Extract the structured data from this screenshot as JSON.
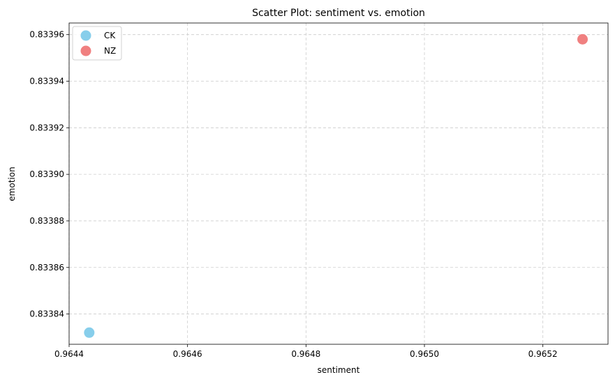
{
  "chart_data": {
    "type": "scatter",
    "title": "Scatter Plot: sentiment vs. emotion",
    "xlabel": "sentiment",
    "ylabel": "emotion",
    "xlim": [
      0.9644,
      0.96531
    ],
    "ylim": [
      0.833827,
      0.833965
    ],
    "xticks": [
      0.9644,
      0.9646,
      0.9648,
      0.965,
      0.9652
    ],
    "xtick_labels": [
      "0.9644",
      "0.9646",
      "0.9648",
      "0.9650",
      "0.9652"
    ],
    "yticks": [
      0.83384,
      0.83386,
      0.83388,
      0.8339,
      0.83392,
      0.83394,
      0.83396
    ],
    "ytick_labels": [
      "0.83384",
      "0.83386",
      "0.83388",
      "0.83390",
      "0.83392",
      "0.83394",
      "0.83396"
    ],
    "grid": true,
    "legend_position": "top-left",
    "series": [
      {
        "name": "CK",
        "color": "#87ceeb",
        "points": [
          {
            "x": 0.964434,
            "y": 0.833832
          }
        ]
      },
      {
        "name": "NZ",
        "color": "#f08080",
        "points": [
          {
            "x": 0.965267,
            "y": 0.833958
          }
        ]
      }
    ]
  }
}
